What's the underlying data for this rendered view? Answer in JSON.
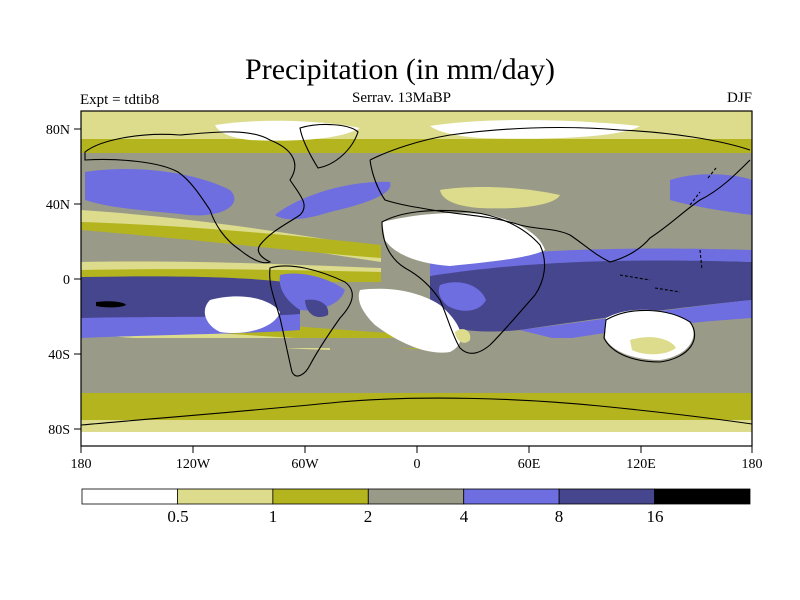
{
  "header": {
    "title": "Precipitation (in mm/day)",
    "experiment": "Expt = tdtib8",
    "subtitle": "Serrav.   13MaBP",
    "season": "DJF"
  },
  "axes": {
    "lat_labels": [
      "80N",
      "40N",
      "0",
      "40S",
      "80S"
    ],
    "lon_labels": [
      "180",
      "120W",
      "60W",
      "0",
      "60E",
      "120E",
      "180"
    ]
  },
  "colorbar": {
    "levels": [
      "0.5",
      "1",
      "2",
      "4",
      "8",
      "16"
    ],
    "colors": [
      "#ffffff",
      "#dcdc8c",
      "#b4b41e",
      "#9a9a88",
      "#6e6ee0",
      "#46468e",
      "#000000"
    ]
  },
  "palette": {
    "ocean_base": "#9a9a88",
    "dry_land": "#ffffff",
    "coast": "#000000"
  }
}
